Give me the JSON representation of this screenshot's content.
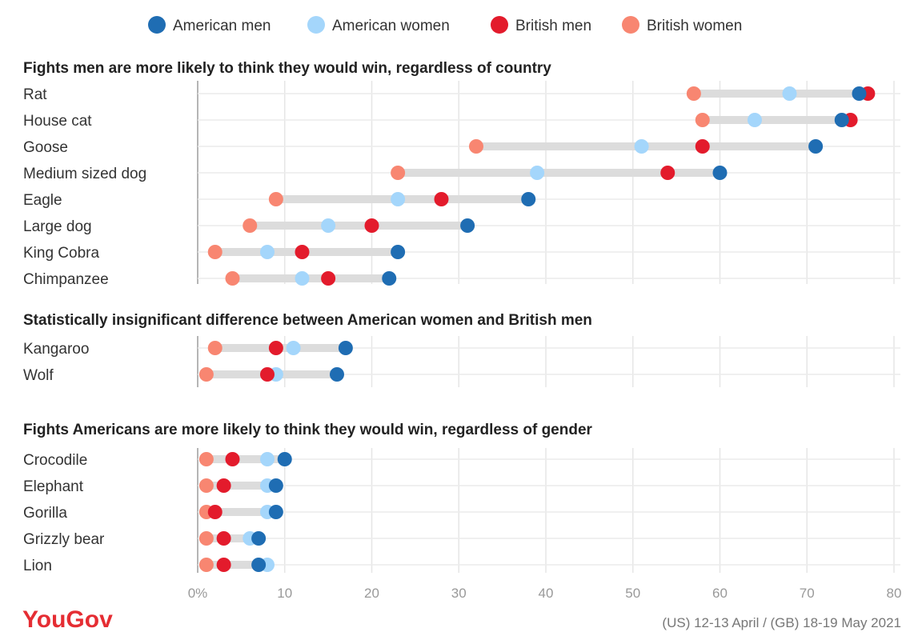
{
  "legend": [
    {
      "key": "am",
      "label": "American men",
      "color": "#1f6db3"
    },
    {
      "key": "aw",
      "label": "American women",
      "color": "#a4d6fb"
    },
    {
      "key": "bm",
      "label": "British men",
      "color": "#e31b2c"
    },
    {
      "key": "bw",
      "label": "British women",
      "color": "#f88671"
    }
  ],
  "chart_data": {
    "type": "dot-plot",
    "x_ticks": [
      "0%",
      "10",
      "20",
      "30",
      "40",
      "50",
      "60",
      "70",
      "80"
    ],
    "xlim": [
      0,
      80
    ],
    "grid": true,
    "legend_position": "top",
    "series": [
      "American men",
      "American women",
      "British men",
      "British women"
    ],
    "groups": [
      {
        "title": "Fights men are more likely to think they would win, regardless of country",
        "rows": [
          {
            "label": "Rat",
            "am": 76,
            "aw": 68,
            "bm": 77,
            "bw": 57
          },
          {
            "label": "House cat",
            "am": 74,
            "aw": 64,
            "bm": 75,
            "bw": 58
          },
          {
            "label": "Goose",
            "am": 71,
            "aw": 51,
            "bm": 58,
            "bw": 32
          },
          {
            "label": "Medium sized dog",
            "am": 60,
            "aw": 39,
            "bm": 54,
            "bw": 23
          },
          {
            "label": "Eagle",
            "am": 38,
            "aw": 23,
            "bm": 28,
            "bw": 9
          },
          {
            "label": "Large dog",
            "am": 31,
            "aw": 15,
            "bm": 20,
            "bw": 6
          },
          {
            "label": "King Cobra",
            "am": 23,
            "aw": 8,
            "bm": 12,
            "bw": 2
          },
          {
            "label": "Chimpanzee",
            "am": 22,
            "aw": 12,
            "bm": 15,
            "bw": 4
          }
        ]
      },
      {
        "title": "Statistically insignificant difference between American women and British men",
        "rows": [
          {
            "label": "Kangaroo",
            "am": 17,
            "aw": 11,
            "bm": 9,
            "bw": 2
          },
          {
            "label": "Wolf",
            "am": 16,
            "aw": 9,
            "bm": 8,
            "bw": 1
          }
        ]
      },
      {
        "title": "Fights Americans are more likely to think they would win, regardless of gender",
        "rows": [
          {
            "label": "Crocodile",
            "am": 10,
            "aw": 8,
            "bm": 4,
            "bw": 1
          },
          {
            "label": "Elephant",
            "am": 9,
            "aw": 8,
            "bm": 3,
            "bw": 1
          },
          {
            "label": "Gorilla",
            "am": 9,
            "aw": 8,
            "bm": 2,
            "bw": 1
          },
          {
            "label": "Grizzly bear",
            "am": 7,
            "aw": 6,
            "bm": 3,
            "bw": 1
          },
          {
            "label": "Lion",
            "am": 7,
            "aw": 8,
            "bm": 3,
            "bw": 1
          }
        ]
      }
    ]
  },
  "footer": {
    "logo": "YouGov",
    "source": "(US) 12-13 April / (GB) 18-19 May 2021"
  }
}
